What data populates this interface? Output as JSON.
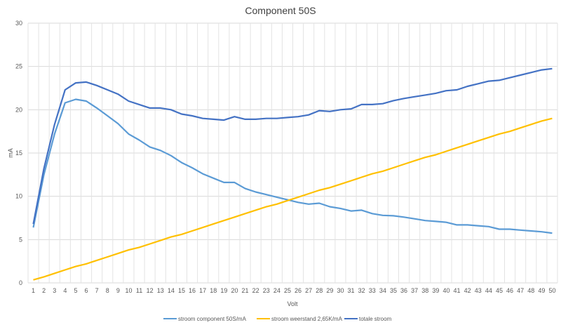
{
  "chart_data": {
    "type": "line",
    "title": "Component 50S",
    "xlabel": "Volt",
    "ylabel": "mA",
    "ylim": [
      0,
      30
    ],
    "yticks": [
      0,
      5,
      10,
      15,
      20,
      25,
      30
    ],
    "grid": true,
    "legend_position": "bottom",
    "x": [
      1,
      2,
      3,
      4,
      5,
      6,
      7,
      8,
      9,
      10,
      11,
      12,
      13,
      14,
      15,
      16,
      17,
      18,
      19,
      20,
      21,
      22,
      23,
      24,
      25,
      26,
      27,
      28,
      29,
      30,
      31,
      32,
      33,
      34,
      35,
      36,
      37,
      38,
      39,
      40,
      41,
      42,
      43,
      44,
      45,
      46,
      47,
      48,
      49,
      50
    ],
    "series": [
      {
        "name": "stroom component 50S/mA",
        "color": "#5B9BD5",
        "values": [
          6.4,
          12.5,
          17.2,
          20.8,
          21.2,
          21.0,
          20.2,
          19.3,
          18.4,
          17.2,
          16.5,
          15.7,
          15.3,
          14.7,
          13.9,
          13.3,
          12.6,
          12.1,
          11.6,
          11.6,
          10.9,
          10.5,
          10.2,
          9.9,
          9.6,
          9.3,
          9.1,
          9.2,
          8.8,
          8.6,
          8.3,
          8.4,
          8.0,
          7.8,
          7.75,
          7.6,
          7.4,
          7.2,
          7.1,
          7.0,
          6.7,
          6.7,
          6.6,
          6.5,
          6.2,
          6.2,
          6.1,
          6.0,
          5.9,
          5.75
        ]
      },
      {
        "name": "stroom weerstand 2,65K/mA",
        "color": "#FFC000",
        "values": [
          0.35,
          0.7,
          1.1,
          1.5,
          1.9,
          2.2,
          2.6,
          3.0,
          3.4,
          3.8,
          4.1,
          4.5,
          4.9,
          5.3,
          5.6,
          6.0,
          6.4,
          6.8,
          7.2,
          7.6,
          8.0,
          8.4,
          8.8,
          9.1,
          9.5,
          9.9,
          10.3,
          10.7,
          11.0,
          11.4,
          11.8,
          12.2,
          12.6,
          12.9,
          13.3,
          13.7,
          14.1,
          14.5,
          14.8,
          15.2,
          15.6,
          16.0,
          16.4,
          16.8,
          17.2,
          17.5,
          17.9,
          18.3,
          18.7,
          19.0
        ]
      },
      {
        "name": "totale stroom",
        "color": "#4472C4",
        "values": [
          6.8,
          13.2,
          18.3,
          22.3,
          23.1,
          23.2,
          22.8,
          22.3,
          21.8,
          21.0,
          20.6,
          20.2,
          20.2,
          20.0,
          19.5,
          19.3,
          19.0,
          18.9,
          18.8,
          19.2,
          18.9,
          18.9,
          19.0,
          19.0,
          19.1,
          19.2,
          19.4,
          19.9,
          19.8,
          20.0,
          20.1,
          20.6,
          20.6,
          20.7,
          21.05,
          21.3,
          21.5,
          21.7,
          21.9,
          22.2,
          22.3,
          22.7,
          23.0,
          23.3,
          23.4,
          23.7,
          24.0,
          24.3,
          24.6,
          24.75
        ]
      }
    ]
  }
}
